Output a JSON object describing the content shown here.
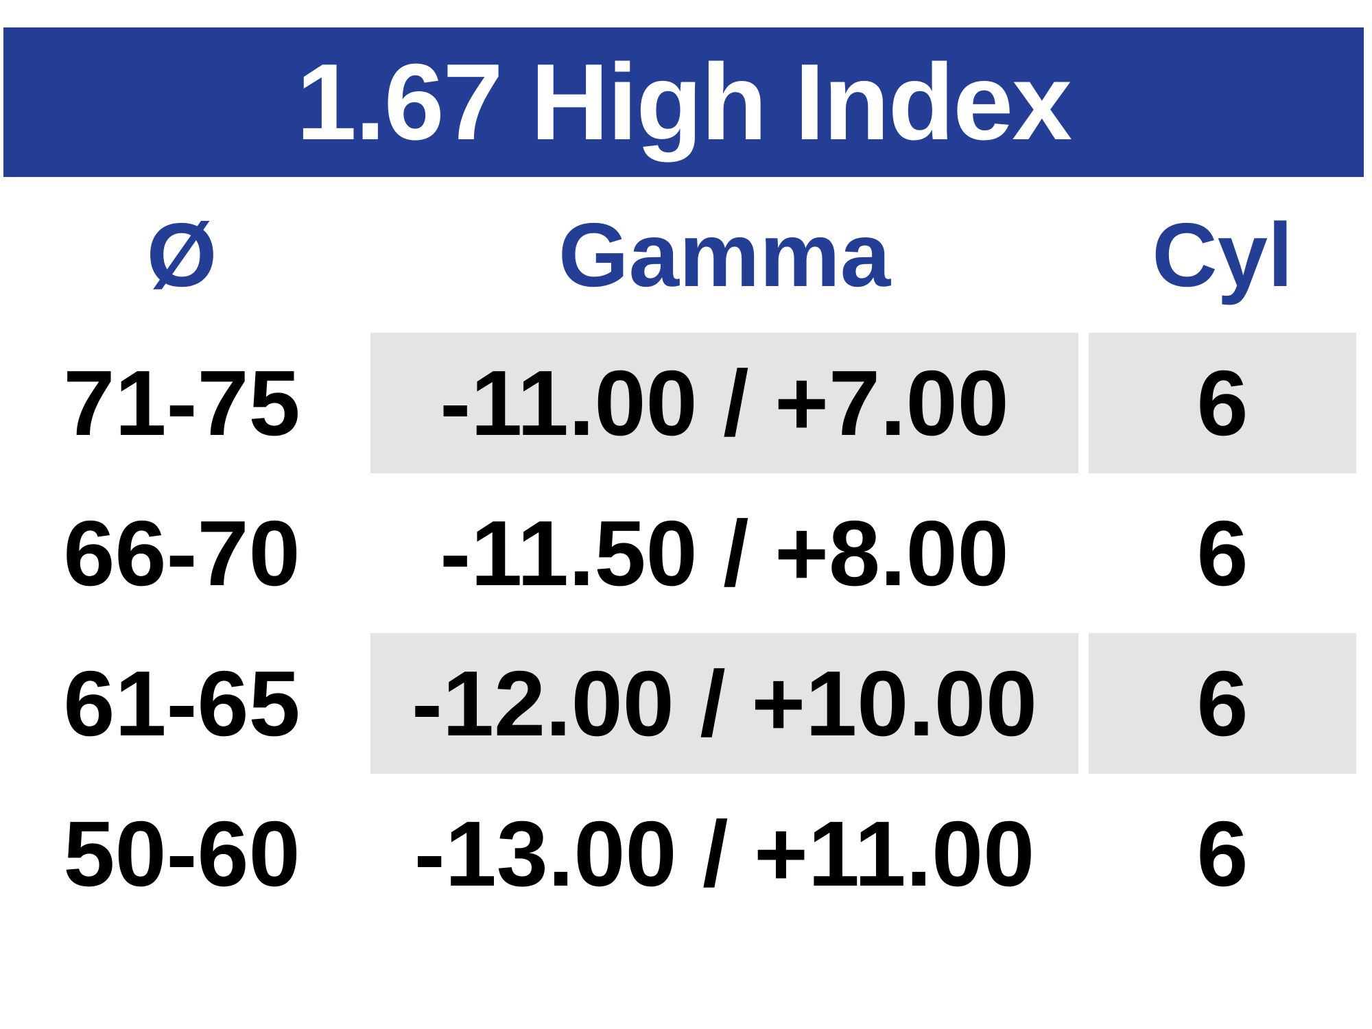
{
  "title": "1.67 High Index",
  "colors": {
    "banner_bg": "#233E94",
    "banner_text": "#FFFFFF",
    "header_text": "#233E94",
    "shaded_cell_bg": "#E4E4E4",
    "body_text": "#000000"
  },
  "table": {
    "columns": [
      {
        "key": "diameter",
        "label": "Ø"
      },
      {
        "key": "gamma",
        "label": "Gamma"
      },
      {
        "key": "cyl",
        "label": "Cyl"
      }
    ],
    "rows": [
      {
        "diameter": "71-75",
        "gamma": "-11.00 / +7.00",
        "cyl": "6",
        "shaded": true
      },
      {
        "diameter": "66-70",
        "gamma": "-11.50 / +8.00",
        "cyl": "6",
        "shaded": false
      },
      {
        "diameter": "61-65",
        "gamma": "-12.00 / +10.00",
        "cyl": "6",
        "shaded": true
      },
      {
        "diameter": "50-60",
        "gamma": "-13.00 / +11.00",
        "cyl": "6",
        "shaded": false
      }
    ]
  }
}
